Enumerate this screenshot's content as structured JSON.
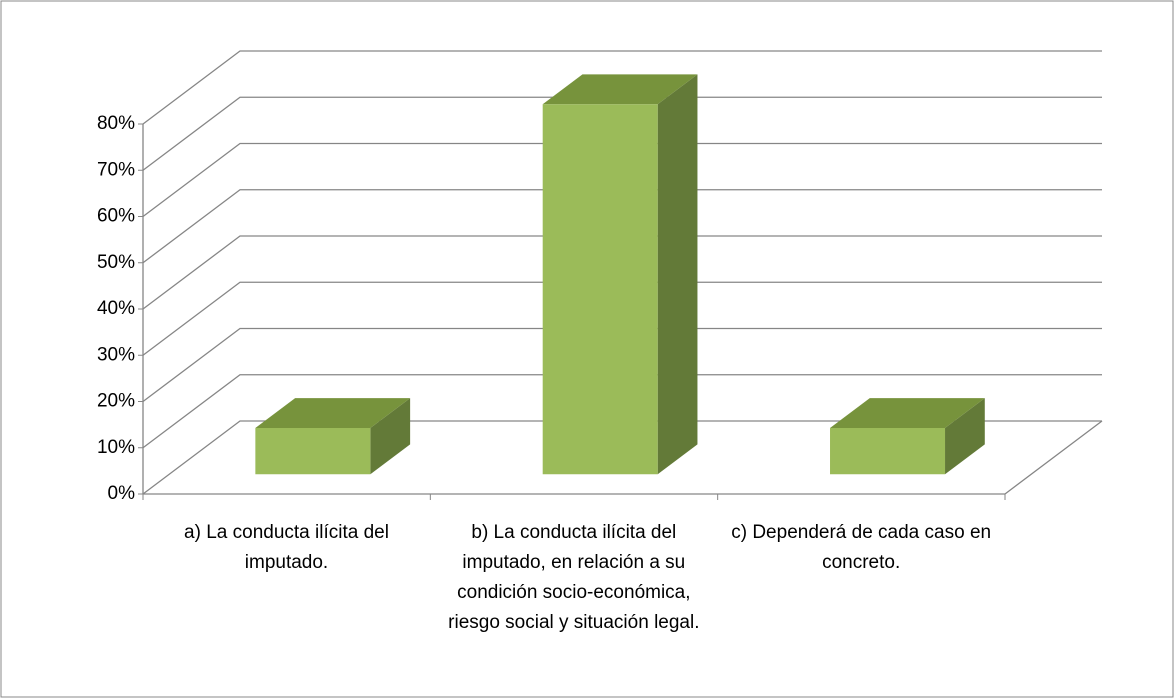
{
  "chart_data": {
    "type": "bar3d",
    "categories": [
      "a) La conducta ilícita del imputado.",
      "b) La conducta ilícita del imputado, en relación a su condición socio-económica, riesgo social y situación legal.",
      "c) Dependerá de cada caso en concreto."
    ],
    "values": [
      10,
      80,
      10
    ],
    "color": "#9bbb59",
    "ylim": [
      0,
      80
    ],
    "yticks": [
      {
        "value": 0,
        "label": "0%"
      },
      {
        "value": 10,
        "label": "10%"
      },
      {
        "value": 20,
        "label": "20%"
      },
      {
        "value": 30,
        "label": "30%"
      },
      {
        "value": 40,
        "label": "40%"
      },
      {
        "value": 50,
        "label": "50%"
      },
      {
        "value": 60,
        "label": "60%"
      },
      {
        "value": 70,
        "label": "70%"
      },
      {
        "value": 80,
        "label": "80%"
      }
    ],
    "grid": true
  }
}
